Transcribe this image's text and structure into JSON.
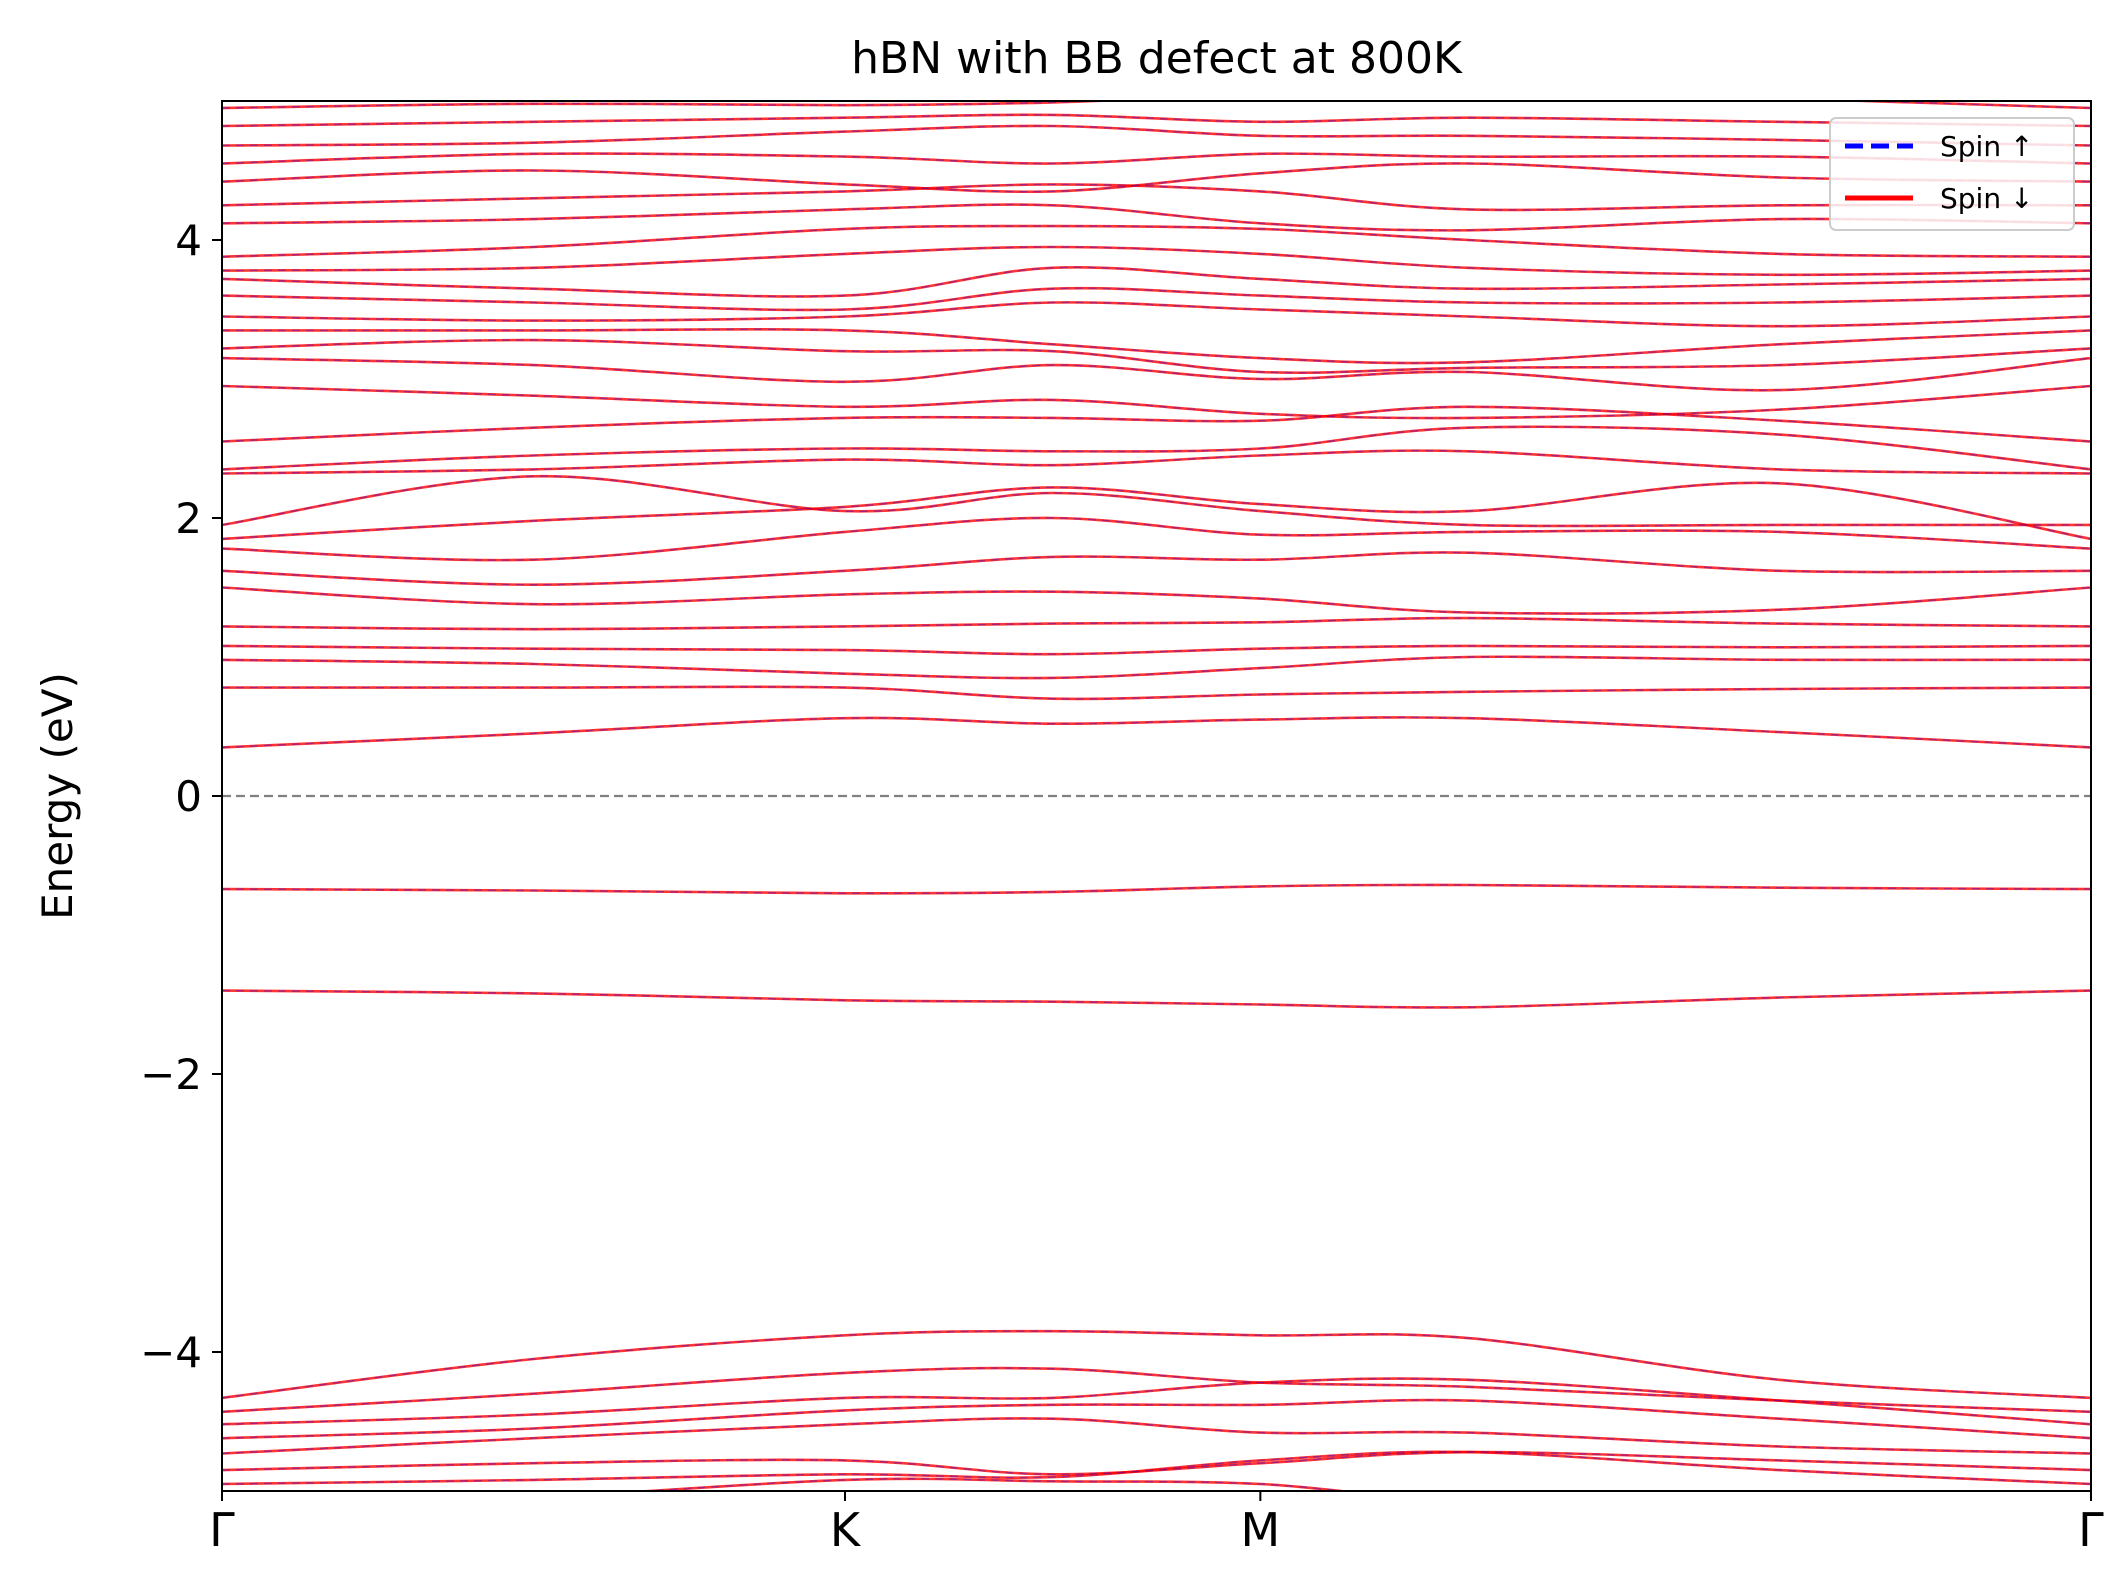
{
  "chart_data": {
    "type": "line",
    "title": "hBN with BB defect at 800K",
    "xlabel": "",
    "ylabel": "Energy (eV)",
    "xlim": [
      0,
      3
    ],
    "ylim": [
      -5,
      5
    ],
    "x_ticks": [
      {
        "value": 0,
        "label": "Γ"
      },
      {
        "value": 1,
        "label": "K"
      },
      {
        "value": 1.6667,
        "label": "M"
      },
      {
        "value": 3,
        "label": "Γ"
      }
    ],
    "y_ticks": [
      {
        "value": -4,
        "label": "−4"
      },
      {
        "value": -2,
        "label": "−2"
      },
      {
        "value": 0,
        "label": "0"
      },
      {
        "value": 2,
        "label": "2"
      },
      {
        "value": 4,
        "label": "4"
      }
    ],
    "fermi_level": 0,
    "legend": {
      "position": "top-right",
      "entries": [
        {
          "name": "Spin ↑",
          "color": "#0000ff",
          "style": "dashed"
        },
        {
          "name": "Spin ↓",
          "color": "#ff0000",
          "style": "solid"
        }
      ]
    },
    "band_color": "#d62140",
    "fermi_color": "#808080",
    "band_x": [
      0,
      0.5,
      1,
      1.3333,
      1.6667,
      2,
      2.5,
      3
    ],
    "bands": [
      [
        -5.15,
        -5.05,
        -4.92,
        -4.93,
        -4.95,
        -5.08,
        -5.12,
        -5.15
      ],
      [
        -4.95,
        -4.92,
        -4.88,
        -4.9,
        -4.78,
        -4.72,
        -4.85,
        -4.95
      ],
      [
        -4.85,
        -4.8,
        -4.78,
        -4.88,
        -4.8,
        -4.72,
        -4.78,
        -4.85
      ],
      [
        -4.73,
        -4.62,
        -4.52,
        -4.48,
        -4.58,
        -4.58,
        -4.68,
        -4.73
      ],
      [
        -4.62,
        -4.55,
        -4.42,
        -4.38,
        -4.38,
        -4.35,
        -4.48,
        -4.62
      ],
      [
        -4.52,
        -4.45,
        -4.33,
        -4.33,
        -4.22,
        -4.2,
        -4.35,
        -4.52
      ],
      [
        -4.43,
        -4.3,
        -4.15,
        -4.12,
        -4.22,
        -4.25,
        -4.35,
        -4.43
      ],
      [
        -4.33,
        -4.05,
        -3.88,
        -3.85,
        -3.88,
        -3.9,
        -4.2,
        -4.33
      ],
      [
        -1.4,
        -1.42,
        -1.47,
        -1.48,
        -1.5,
        -1.52,
        -1.45,
        -1.4
      ],
      [
        -0.67,
        -0.68,
        -0.7,
        -0.69,
        -0.65,
        -0.64,
        -0.66,
        -0.67
      ],
      [
        0.35,
        0.45,
        0.56,
        0.52,
        0.55,
        0.56,
        0.46,
        0.35
      ],
      [
        0.78,
        0.78,
        0.78,
        0.7,
        0.73,
        0.75,
        0.77,
        0.78
      ],
      [
        0.98,
        0.95,
        0.88,
        0.85,
        0.92,
        1.0,
        0.98,
        0.98
      ],
      [
        1.08,
        1.06,
        1.05,
        1.02,
        1.06,
        1.08,
        1.07,
        1.08
      ],
      [
        1.22,
        1.2,
        1.22,
        1.24,
        1.25,
        1.28,
        1.24,
        1.22
      ],
      [
        1.5,
        1.38,
        1.45,
        1.47,
        1.42,
        1.32,
        1.34,
        1.5
      ],
      [
        1.62,
        1.52,
        1.62,
        1.72,
        1.7,
        1.75,
        1.62,
        1.62
      ],
      [
        1.78,
        1.7,
        1.9,
        2.0,
        1.88,
        1.9,
        1.9,
        1.78
      ],
      [
        1.85,
        1.98,
        2.08,
        2.22,
        2.1,
        2.05,
        2.25,
        1.85
      ],
      [
        1.95,
        2.3,
        2.05,
        2.18,
        2.05,
        1.95,
        1.95,
        1.95
      ],
      [
        2.32,
        2.35,
        2.42,
        2.38,
        2.45,
        2.48,
        2.35,
        2.32
      ],
      [
        2.35,
        2.45,
        2.5,
        2.48,
        2.5,
        2.65,
        2.6,
        2.35
      ],
      [
        2.55,
        2.65,
        2.72,
        2.72,
        2.7,
        2.8,
        2.7,
        2.55
      ],
      [
        2.95,
        2.88,
        2.8,
        2.85,
        2.75,
        2.72,
        2.78,
        2.95
      ],
      [
        3.15,
        3.1,
        2.98,
        3.1,
        3.0,
        3.05,
        2.92,
        3.15
      ],
      [
        3.22,
        3.28,
        3.2,
        3.2,
        3.05,
        3.08,
        3.1,
        3.22
      ],
      [
        3.35,
        3.35,
        3.35,
        3.25,
        3.15,
        3.12,
        3.25,
        3.35
      ],
      [
        3.45,
        3.42,
        3.45,
        3.55,
        3.5,
        3.45,
        3.38,
        3.45
      ],
      [
        3.6,
        3.55,
        3.5,
        3.65,
        3.6,
        3.55,
        3.55,
        3.6
      ],
      [
        3.72,
        3.65,
        3.6,
        3.8,
        3.72,
        3.65,
        3.68,
        3.72
      ],
      [
        3.78,
        3.8,
        3.9,
        3.95,
        3.9,
        3.8,
        3.75,
        3.78
      ],
      [
        3.88,
        3.95,
        4.08,
        4.1,
        4.08,
        4.0,
        3.9,
        3.88
      ],
      [
        4.12,
        4.15,
        4.22,
        4.25,
        4.12,
        4.07,
        4.15,
        4.12
      ],
      [
        4.25,
        4.3,
        4.35,
        4.4,
        4.35,
        4.22,
        4.25,
        4.25
      ],
      [
        4.42,
        4.5,
        4.4,
        4.35,
        4.48,
        4.55,
        4.45,
        4.42
      ],
      [
        4.55,
        4.62,
        4.6,
        4.55,
        4.62,
        4.6,
        4.6,
        4.55
      ],
      [
        4.68,
        4.7,
        4.78,
        4.82,
        4.75,
        4.75,
        4.72,
        4.68
      ],
      [
        4.82,
        4.85,
        4.88,
        4.9,
        4.85,
        4.88,
        4.85,
        4.82
      ],
      [
        4.95,
        4.98,
        4.97,
        4.99,
        5.05,
        5.1,
        5.02,
        4.95
      ]
    ]
  }
}
